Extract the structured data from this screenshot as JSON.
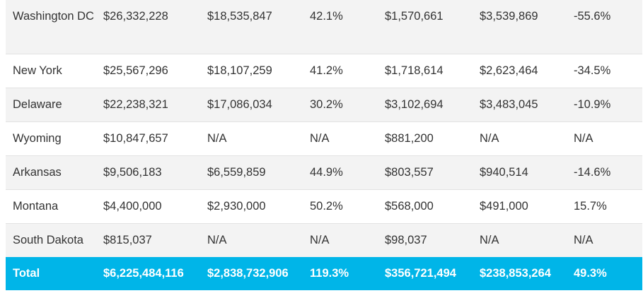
{
  "rows": [
    {
      "cells": [
        "Washington DC",
        "$26,332,228",
        "$18,535,847",
        "42.1%",
        "$1,570,661",
        "$3,539,869",
        "-55.6%"
      ]
    },
    {
      "cells": [
        "New York",
        "$25,567,296",
        "$18,107,259",
        "41.2%",
        "$1,718,614",
        "$2,623,464",
        "-34.5%"
      ]
    },
    {
      "cells": [
        "Delaware",
        "$22,238,321",
        "$17,086,034",
        "30.2%",
        "$3,102,694",
        "$3,483,045",
        "-10.9%"
      ]
    },
    {
      "cells": [
        "Wyoming",
        "$10,847,657",
        "N/A",
        "N/A",
        "$881,200",
        "N/A",
        "N/A"
      ]
    },
    {
      "cells": [
        "Arkansas",
        "$9,506,183",
        "$6,559,859",
        "44.9%",
        "$803,557",
        "$940,514",
        "-14.6%"
      ]
    },
    {
      "cells": [
        "Montana",
        "$4,400,000",
        "$2,930,000",
        "50.2%",
        "$568,000",
        "$491,000",
        "15.7%"
      ]
    },
    {
      "cells": [
        "South Dakota",
        "$815,037",
        "N/A",
        "N/A",
        "$98,037",
        "N/A",
        "N/A"
      ]
    }
  ],
  "total": {
    "cells": [
      "Total",
      "$6,225,484,116",
      "$2,838,732,906",
      "119.3%",
      "$356,721,494",
      "$238,853,264",
      "49.3%"
    ]
  },
  "colors": {
    "total_row_bg": "#00b5e8",
    "odd_row_bg": "#f3f3f3",
    "even_row_bg": "#ffffff"
  }
}
